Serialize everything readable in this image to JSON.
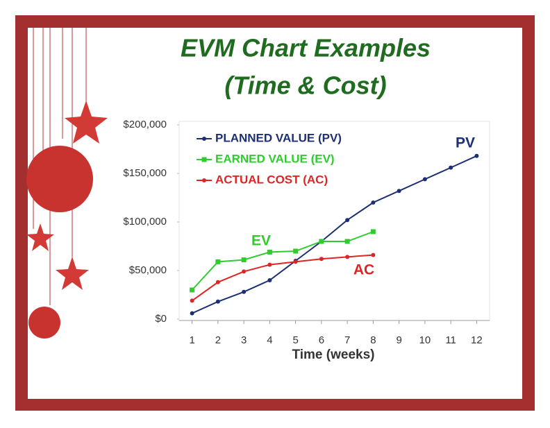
{
  "chart_data": {
    "type": "line",
    "title": "EVM Chart Examples",
    "subtitle": "(Time & Cost)",
    "x_label": "Time (weeks)",
    "x": [
      1,
      2,
      3,
      4,
      5,
      6,
      7,
      8,
      9,
      10,
      11,
      12
    ],
    "xlim": [
      0.5,
      12.5
    ],
    "xticks": [
      1,
      2,
      3,
      4,
      5,
      6,
      7,
      8,
      9,
      10,
      11,
      12
    ],
    "ylim": [
      0,
      200000
    ],
    "yticks": [
      {
        "value": 0,
        "label": "$0"
      },
      {
        "value": 50000,
        "label": "$50,000"
      },
      {
        "value": 100000,
        "label": "$100,000"
      },
      {
        "value": 150000,
        "label": "$150,000"
      },
      {
        "value": 200000,
        "label": "$200,000"
      }
    ],
    "grid": false,
    "legend": "upper left",
    "series": [
      {
        "name": "PLANNED VALUE (PV)",
        "color": "#1c2f73",
        "values": [
          6000,
          18000,
          28000,
          40000,
          60000,
          80000,
          102000,
          120000,
          132000,
          144000,
          156000,
          168000
        ]
      },
      {
        "name": "EARNED VALUE (EV)",
        "color": "#2ecc2e",
        "values": [
          30000,
          59000,
          61000,
          69000,
          70000,
          80000,
          80000,
          90000,
          null,
          null,
          null,
          null
        ]
      },
      {
        "name": "ACTUAL COST (AC)",
        "color": "#e02424",
        "values": [
          19000,
          38000,
          49000,
          56000,
          59000,
          62000,
          64000,
          66000,
          null,
          null,
          null,
          null
        ]
      }
    ],
    "annotations": [
      {
        "text": "PV",
        "series": 0
      },
      {
        "text": "EV",
        "series": 1
      },
      {
        "text": "AC",
        "series": 2
      }
    ]
  }
}
